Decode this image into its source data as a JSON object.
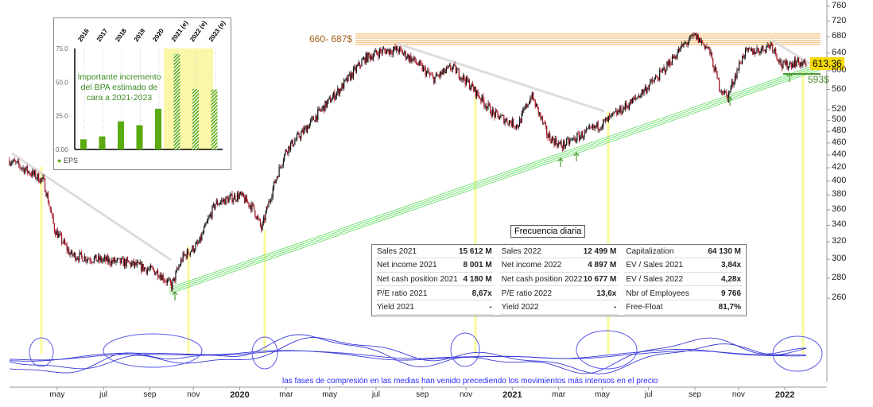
{
  "chart_data": {
    "type": "candlestick",
    "scale": "log",
    "ylim": [
      250,
      770
    ],
    "y_ticks": [
      760,
      720,
      680,
      640,
      600,
      560,
      520,
      500,
      480,
      460,
      440,
      420,
      400,
      380,
      360,
      340,
      320,
      300,
      280,
      260
    ],
    "x_ticks": [
      {
        "t": 2019.33,
        "label": "may"
      },
      {
        "t": 2019.5,
        "label": "jul"
      },
      {
        "t": 2019.67,
        "label": "sep"
      },
      {
        "t": 2019.83,
        "label": "nov"
      },
      {
        "t": 2020.0,
        "label": "2020",
        "year": true
      },
      {
        "t": 2020.17,
        "label": "mar"
      },
      {
        "t": 2020.33,
        "label": "may"
      },
      {
        "t": 2020.5,
        "label": "jul"
      },
      {
        "t": 2020.67,
        "label": "sep"
      },
      {
        "t": 2020.83,
        "label": "nov"
      },
      {
        "t": 2021.0,
        "label": "2021",
        "year": true
      },
      {
        "t": 2021.17,
        "label": "mar"
      },
      {
        "t": 2021.33,
        "label": "may"
      },
      {
        "t": 2021.5,
        "label": "jul"
      },
      {
        "t": 2021.67,
        "label": "sep"
      },
      {
        "t": 2021.83,
        "label": "nov"
      },
      {
        "t": 2022.0,
        "label": "2022",
        "year": true
      }
    ],
    "price_path": [
      [
        2019.155,
        432
      ],
      [
        2019.21,
        418
      ],
      [
        2019.28,
        400
      ],
      [
        2019.32,
        335
      ],
      [
        2019.38,
        305
      ],
      [
        2019.47,
        300
      ],
      [
        2019.59,
        296
      ],
      [
        2019.7,
        286
      ],
      [
        2019.75,
        272
      ],
      [
        2019.79,
        302
      ],
      [
        2019.85,
        318
      ],
      [
        2019.91,
        368
      ],
      [
        2020.0,
        380
      ],
      [
        2020.05,
        362
      ],
      [
        2020.08,
        335
      ],
      [
        2020.13,
        400
      ],
      [
        2020.17,
        448
      ],
      [
        2020.23,
        478
      ],
      [
        2020.3,
        520
      ],
      [
        2020.37,
        562
      ],
      [
        2020.46,
        628
      ],
      [
        2020.52,
        645
      ],
      [
        2020.58,
        648
      ],
      [
        2020.64,
        622
      ],
      [
        2020.71,
        582
      ],
      [
        2020.78,
        608
      ],
      [
        2020.84,
        572
      ],
      [
        2020.93,
        512
      ],
      [
        2021.02,
        490
      ],
      [
        2021.07,
        548
      ],
      [
        2021.13,
        472
      ],
      [
        2021.18,
        455
      ],
      [
        2021.28,
        480
      ],
      [
        2021.35,
        500
      ],
      [
        2021.45,
        540
      ],
      [
        2021.54,
        590
      ],
      [
        2021.63,
        660
      ],
      [
        2021.67,
        682
      ],
      [
        2021.72,
        650
      ],
      [
        2021.76,
        565
      ],
      [
        2021.79,
        545
      ],
      [
        2021.85,
        640
      ],
      [
        2021.92,
        650
      ],
      [
        2021.95,
        662
      ],
      [
        2021.99,
        610
      ],
      [
        2022.04,
        620
      ],
      [
        2022.08,
        613
      ]
    ],
    "last_price": "613,36",
    "resistance_label": "660- 687$",
    "resistance_range": [
      660,
      687
    ],
    "support_label": "593$",
    "support": 593,
    "frequency_label": "Frecuencia diaria",
    "caption": "las fases de compresión en las medias han venido precediendo los movimientos más intensos en el precio",
    "eps_inset": {
      "categories": [
        "2016",
        "2017",
        "2018",
        "2019",
        "2020",
        "2021 (e)",
        "2022 (e)",
        "2023 (e)"
      ],
      "values": [
        7.5,
        9.7,
        20.9,
        18.0,
        30.2,
        71.0,
        45.0,
        44.5
      ],
      "estimated": [
        false,
        false,
        false,
        false,
        false,
        true,
        true,
        true
      ],
      "y_ticks": [
        "75.0",
        "50.0",
        "25.0",
        "0.00"
      ],
      "ylim": [
        0,
        75
      ],
      "annotation": "Importante incremento del BPA estimado de cara a 2021-2023",
      "legend": "EPS",
      "bar_color": "#5aaa10"
    }
  },
  "table": {
    "rows": [
      [
        [
          "Sales 2021",
          "15 612 M"
        ],
        [
          "Sales 2022",
          "12 499 M"
        ],
        [
          "Capitalization",
          "64 130 M"
        ]
      ],
      [
        [
          "Net income 2021",
          "8 001 M"
        ],
        [
          "Net income 2022",
          "4 897 M"
        ],
        [
          "EV / Sales 2021",
          "3,84x"
        ]
      ],
      [
        [
          "Net cash position 2021",
          "4 180 M"
        ],
        [
          "Net cash position 2022",
          "10 677 M"
        ],
        [
          "EV / Sales 2022",
          "4,28x"
        ]
      ],
      [
        [
          "P/E ratio 2021",
          "8,67x"
        ],
        [
          "P/E ratio 2022",
          "13,6x"
        ],
        [
          "Nbr of Employees",
          "9 766"
        ]
      ],
      [
        [
          "Yield 2021",
          "-"
        ],
        [
          "Yield 2022",
          "-"
        ],
        [
          "Free-Float",
          "81,7%"
        ]
      ]
    ]
  }
}
